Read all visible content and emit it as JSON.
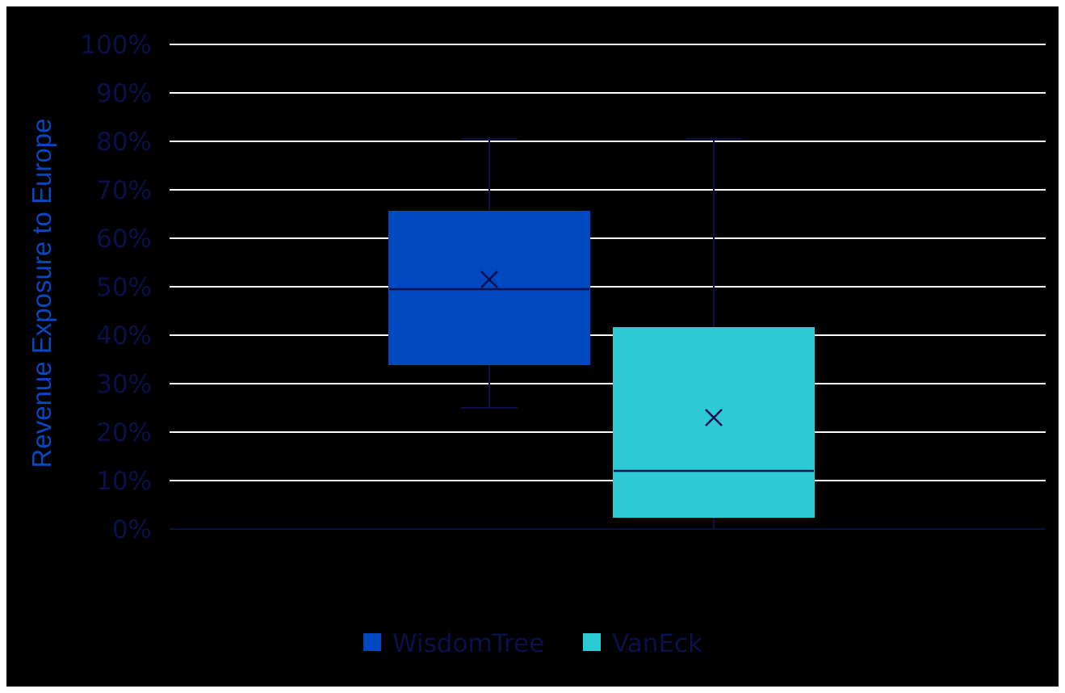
{
  "chart_data": {
    "type": "box",
    "ylabel": "Revenue Exposure to Europe",
    "xlabel": "",
    "y_ticks": [
      "0%",
      "10%",
      "20%",
      "30%",
      "40%",
      "50%",
      "60%",
      "70%",
      "80%",
      "90%",
      "100%"
    ],
    "ylim": [
      0,
      100
    ],
    "grid": true,
    "legend_position": "bottom",
    "series": [
      {
        "name": "WisdomTree",
        "color": "#0048c0",
        "min": 25,
        "q1": 34,
        "median": 49.5,
        "q3": 65.5,
        "max": 80.5,
        "mean": 51.5
      },
      {
        "name": "VanEck",
        "color": "#2ecad3",
        "min": 0,
        "q1": 2.5,
        "median": 12,
        "q3": 41.5,
        "max": 80.5,
        "mean": 23
      }
    ]
  },
  "colors": {
    "background": "#000000",
    "gridline": "#ffffff",
    "tick_text": "#0b0f4a",
    "axis_title": "#0a45c2",
    "whisker": "#0b0f4a"
  }
}
